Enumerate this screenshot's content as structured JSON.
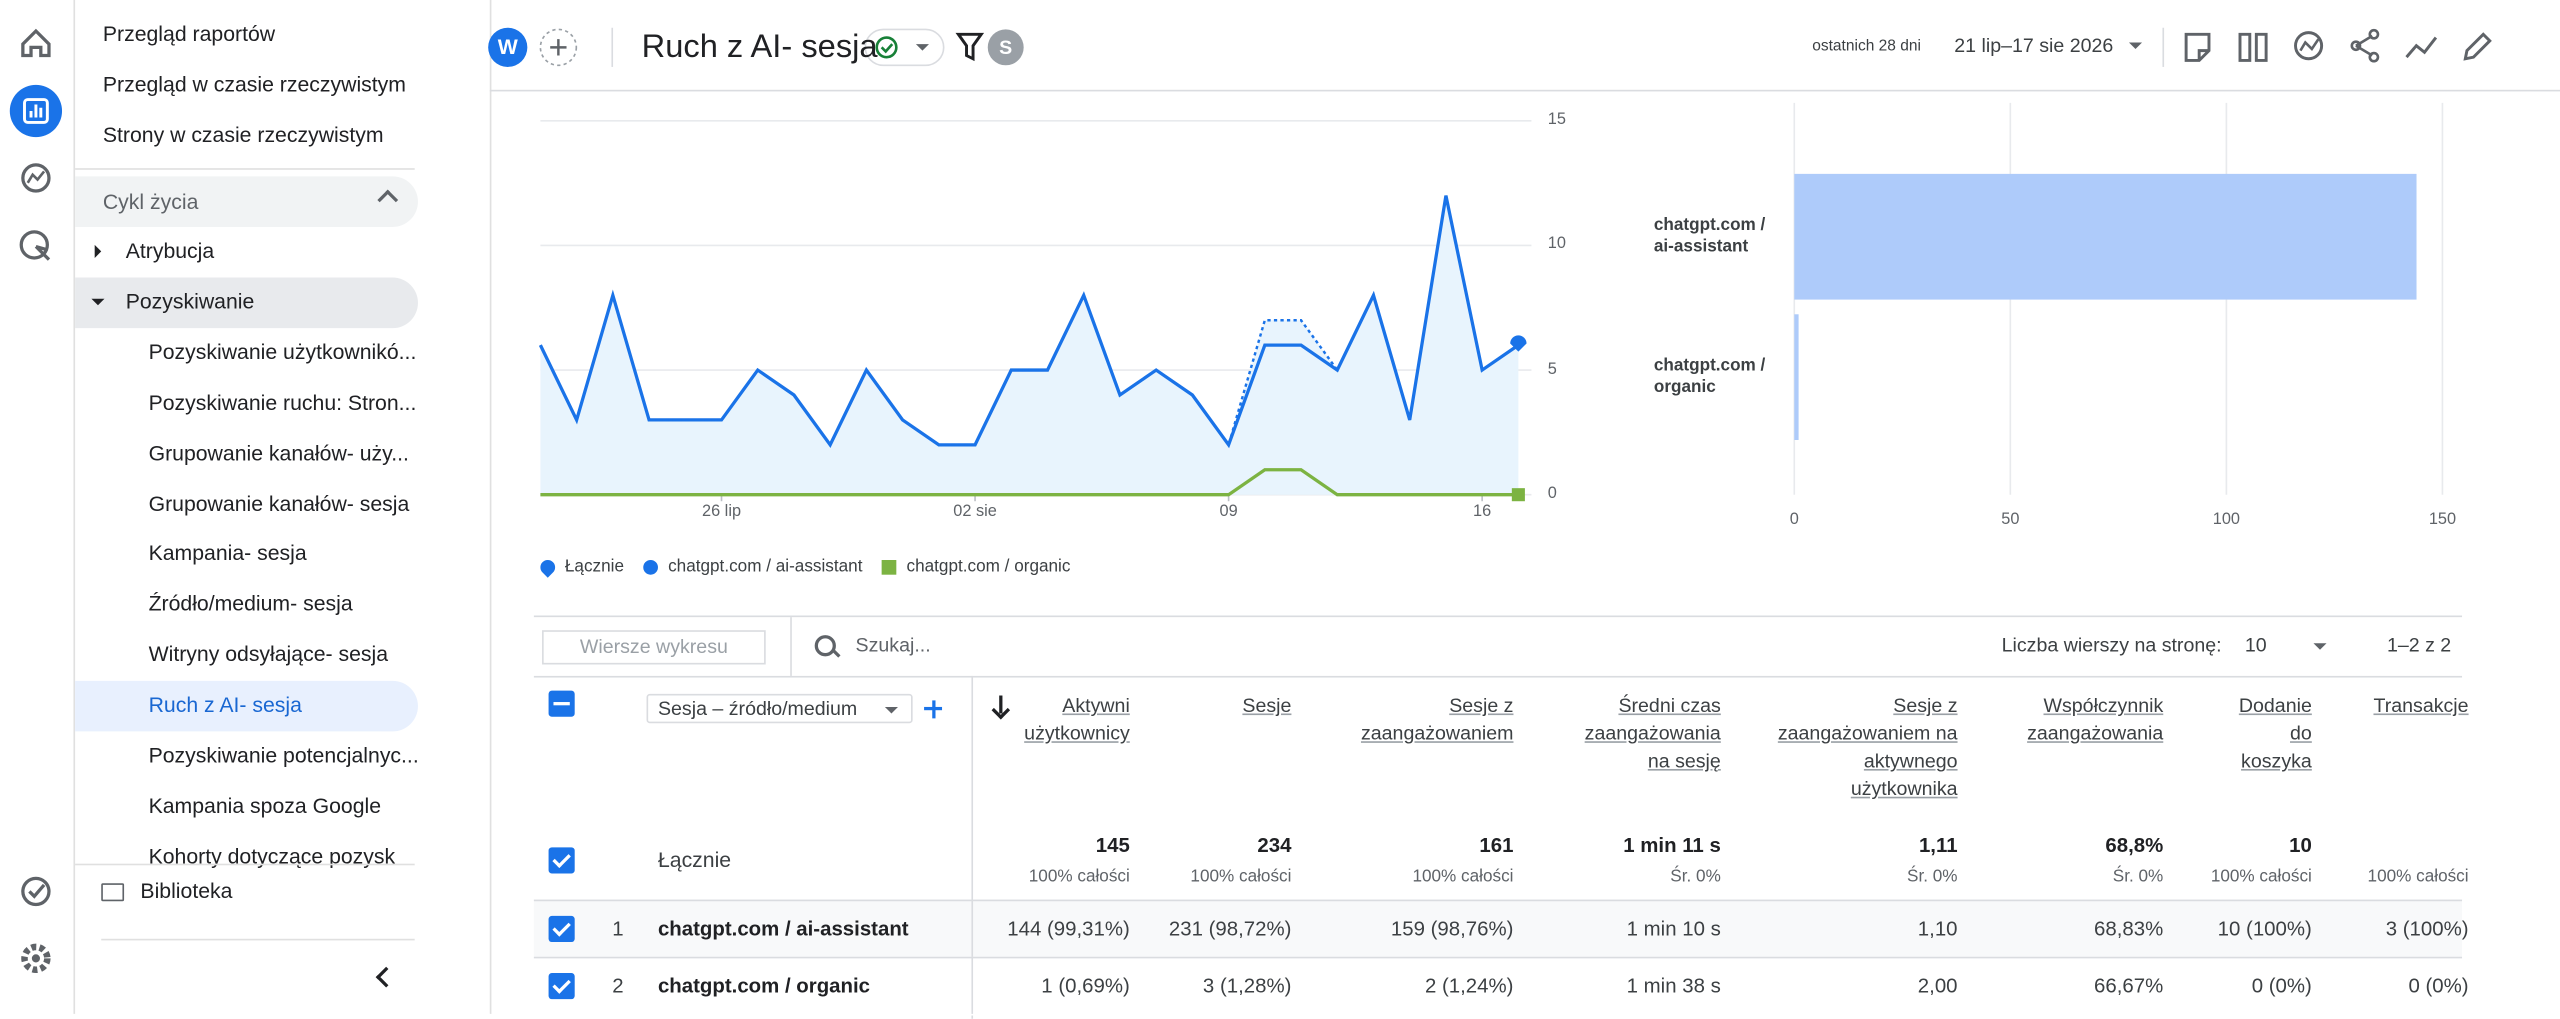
{
  "nav": {
    "items": [
      "Przegląd raportów",
      "Przegląd w czasie rzeczywistym",
      "Strony w czasie rzeczywistym"
    ],
    "section": "Cykl życia",
    "groups": [
      "Atrybucja",
      "Pozyskiwanie"
    ],
    "subitems": [
      "Pozyskiwanie użytkownikó...",
      "Pozyskiwanie ruchu: Stron...",
      "Grupowanie kanałów- uży...",
      "Grupowanie kanałów- sesja",
      "Kampania- sesja",
      "Źródło/medium- sesja",
      "Witryny odsyłające- sesja",
      "Ruch z AI- sesja",
      "Pozyskiwanie potencjalnyc...",
      "Kampania spoza Google",
      "Kohorty dotyczące pozysk"
    ],
    "library": "Biblioteka"
  },
  "header": {
    "avatar": "W",
    "title": "Ruch z AI- sesja",
    "user": "S",
    "date_range_label": "ostatnich 28 dni",
    "date_range": "21 lip–17 sie 2026"
  },
  "chart_data": [
    {
      "type": "line",
      "categories": [
        null,
        null,
        null,
        null,
        null,
        "26 lip",
        null,
        null,
        null,
        null,
        null,
        null,
        "02 sie",
        null,
        null,
        null,
        null,
        null,
        null,
        "09",
        null,
        null,
        null,
        null,
        null,
        null,
        "16",
        null
      ],
      "series": [
        {
          "name": "Łącznie",
          "color": "#1a73e8",
          "style": "dotted",
          "marker": "pin",
          "fill": "#e8f4fd",
          "values": [
            6,
            3,
            8,
            3,
            3,
            3,
            5,
            4,
            2,
            5,
            3,
            2,
            2,
            5,
            5,
            8,
            4,
            5,
            4,
            2,
            7,
            7,
            5,
            8,
            3,
            12,
            5,
            6
          ]
        },
        {
          "name": "chatgpt.com / ai-assistant",
          "color": "#1a73e8",
          "style": "solid",
          "marker": "circle",
          "values": [
            6,
            3,
            8,
            3,
            3,
            3,
            5,
            4,
            2,
            5,
            3,
            2,
            2,
            5,
            5,
            8,
            4,
            5,
            4,
            2,
            6,
            6,
            5,
            8,
            3,
            12,
            5,
            6
          ]
        },
        {
          "name": "chatgpt.com / organic",
          "color": "#7cb342",
          "style": "solid",
          "marker": "square",
          "values": [
            0,
            0,
            0,
            0,
            0,
            0,
            0,
            0,
            0,
            0,
            0,
            0,
            0,
            0,
            0,
            0,
            0,
            0,
            0,
            0,
            1,
            1,
            0,
            0,
            0,
            0,
            0,
            0
          ]
        }
      ],
      "ylim": [
        0,
        15
      ],
      "yticks": [
        0,
        5,
        10,
        15
      ],
      "grid": true
    },
    {
      "type": "bar",
      "orientation": "horizontal",
      "categories": [
        "chatgpt.com / ai-assistant",
        "chatgpt.com / organic"
      ],
      "values": [
        144,
        1
      ],
      "color": "#aecbfa",
      "xlim": [
        0,
        150
      ],
      "xticks": [
        0,
        50,
        100,
        150
      ],
      "grid": true
    }
  ],
  "table": {
    "chart_rows_button": "Wiersze wykresu",
    "search_placeholder": "Szukaj...",
    "rows_per_page_label": "Liczba wierszy na stronę:",
    "rows_per_page": 10,
    "pagination": "1–2 z 2",
    "dimension": "Sesja – źródło/medium",
    "columns": [
      "Aktywni użytkownicy",
      "Sesje",
      "Sesje z zaangażowaniem",
      "Średni czas zaangażowania na sesję",
      "Sesje z zaangażowaniem na aktywnego użytkownika",
      "Współczynnik zaangażowania",
      "Dodanie do koszyka",
      "Transakcje"
    ],
    "totals_label": "Łącznie",
    "totals": [
      {
        "value": "145",
        "sub": "100% całości"
      },
      {
        "value": "234",
        "sub": "100% całości"
      },
      {
        "value": "161",
        "sub": "100% całości"
      },
      {
        "value": "1 min 11 s",
        "sub": "Śr. 0%"
      },
      {
        "value": "1,11",
        "sub": "Śr. 0%"
      },
      {
        "value": "68,8%",
        "sub": "Śr. 0%"
      },
      {
        "value": "10",
        "sub": "100% całości"
      },
      {
        "sub": "100% całości"
      }
    ],
    "rows": [
      {
        "rank": 1,
        "name": "chatgpt.com / ai-assistant",
        "cells": [
          "144 (99,31%)",
          "231 (98,72%)",
          "159 (98,76%)",
          "1 min 10 s",
          "1,10",
          "68,83%",
          "10 (100%)",
          "3 (100%)"
        ]
      },
      {
        "rank": 2,
        "name": "chatgpt.com / organic",
        "cells": [
          "1 (0,69%)",
          "3 (1,28%)",
          "2 (1,24%)",
          "1 min 38 s",
          "2,00",
          "66,67%",
          "0 (0%)",
          "0 (0%)"
        ]
      }
    ]
  }
}
